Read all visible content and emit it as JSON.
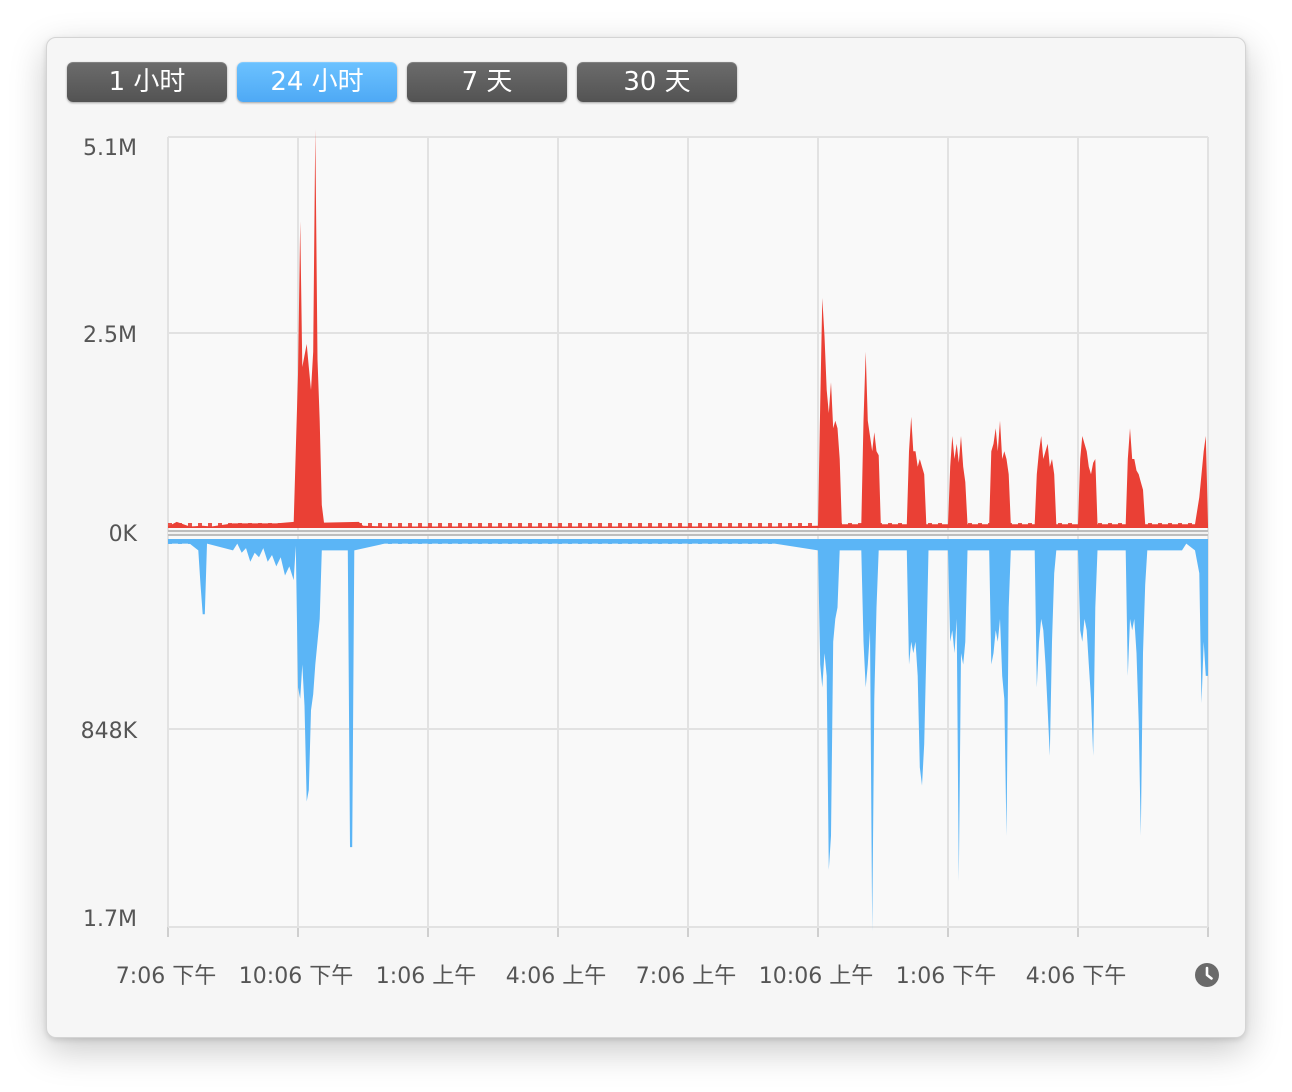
{
  "tabs": [
    {
      "label": "1 小时",
      "active": false
    },
    {
      "label": "24 小时",
      "active": true
    },
    {
      "label": "7 天",
      "active": false
    },
    {
      "label": "30 天",
      "active": false
    }
  ],
  "colors": {
    "sent": "#ea4035",
    "received": "#5bb5f6",
    "grid": "#e2e2e2",
    "baseline": "#bdbdbd",
    "text": "#555555"
  },
  "icons": {
    "time": "clock-icon"
  },
  "chart_data": {
    "type": "area",
    "title": "",
    "xlabel": "",
    "ylabel": "",
    "grid": true,
    "legend": "none",
    "x_ticks": [
      "7:06 下午",
      "10:06 下午",
      "1:06 上午",
      "4:06 上午",
      "7:06 上午",
      "10:06 上午",
      "1:06 下午",
      "4:06 下午"
    ],
    "y_upper_ticks": [
      "5.1M",
      "2.5M",
      "0K"
    ],
    "y_lower_ticks": [
      "848K",
      "1.7M"
    ],
    "upper_max_bytes": 5100000,
    "lower_max_bytes": 1700000,
    "x_range_hours": [
      0,
      24
    ],
    "series": [
      {
        "key": "sent",
        "direction": "up",
        "points": [
          [
            0,
            0.02
          ],
          [
            0.2,
            0.08
          ],
          [
            0.5,
            0.02
          ],
          [
            0.8,
            0.03
          ],
          [
            1.0,
            0.02
          ],
          [
            1.5,
            0.06
          ],
          [
            2.5,
            0.06
          ],
          [
            2.9,
            0.08
          ],
          [
            3.0,
            2.0
          ],
          [
            3.05,
            4.0
          ],
          [
            3.1,
            2.1
          ],
          [
            3.2,
            2.4
          ],
          [
            3.25,
            2.1
          ],
          [
            3.3,
            1.8
          ],
          [
            3.35,
            2.3
          ],
          [
            3.4,
            5.2
          ],
          [
            3.45,
            2.2
          ],
          [
            3.5,
            1.4
          ],
          [
            3.55,
            0.3
          ],
          [
            3.6,
            0.07
          ],
          [
            4.4,
            0.08
          ],
          [
            4.5,
            0.03
          ],
          [
            5.0,
            0.02
          ],
          [
            6.0,
            0.02
          ],
          [
            8.0,
            0.02
          ],
          [
            10.0,
            0.02
          ],
          [
            12.0,
            0.02
          ],
          [
            14.0,
            0.02
          ],
          [
            15.0,
            0.03
          ],
          [
            15.05,
            1.6
          ],
          [
            15.1,
            3.0
          ],
          [
            15.15,
            2.5
          ],
          [
            15.2,
            1.8
          ],
          [
            15.25,
            1.5
          ],
          [
            15.3,
            1.9
          ],
          [
            15.35,
            1.3
          ],
          [
            15.4,
            1.4
          ],
          [
            15.45,
            1.3
          ],
          [
            15.5,
            0.9
          ],
          [
            15.55,
            0.05
          ],
          [
            16.0,
            0.05
          ],
          [
            16.05,
            1.4
          ],
          [
            16.1,
            2.3
          ],
          [
            16.15,
            1.4
          ],
          [
            16.2,
            1.2
          ],
          [
            16.25,
            1.0
          ],
          [
            16.3,
            1.25
          ],
          [
            16.35,
            1.0
          ],
          [
            16.4,
            0.95
          ],
          [
            16.45,
            0.05
          ],
          [
            17.05,
            0.05
          ],
          [
            17.1,
            1.0
          ],
          [
            17.15,
            1.45
          ],
          [
            17.2,
            1.0
          ],
          [
            17.25,
            1.0
          ],
          [
            17.3,
            0.8
          ],
          [
            17.35,
            0.9
          ],
          [
            17.4,
            0.8
          ],
          [
            17.45,
            0.7
          ],
          [
            17.5,
            0.05
          ],
          [
            18.0,
            0.05
          ],
          [
            18.05,
            0.8
          ],
          [
            18.1,
            1.2
          ],
          [
            18.15,
            0.9
          ],
          [
            18.2,
            1.1
          ],
          [
            18.25,
            0.85
          ],
          [
            18.3,
            1.2
          ],
          [
            18.35,
            0.8
          ],
          [
            18.4,
            0.6
          ],
          [
            18.45,
            0.05
          ],
          [
            18.95,
            0.05
          ],
          [
            19.0,
            1.0
          ],
          [
            19.05,
            1.1
          ],
          [
            19.1,
            1.3
          ],
          [
            19.15,
            1.0
          ],
          [
            19.2,
            1.4
          ],
          [
            19.25,
            0.9
          ],
          [
            19.3,
            1.0
          ],
          [
            19.35,
            0.9
          ],
          [
            19.4,
            0.7
          ],
          [
            19.45,
            0.05
          ],
          [
            20.0,
            0.05
          ],
          [
            20.05,
            0.7
          ],
          [
            20.1,
            1.0
          ],
          [
            20.15,
            1.2
          ],
          [
            20.2,
            0.9
          ],
          [
            20.25,
            1.0
          ],
          [
            20.3,
            1.1
          ],
          [
            20.35,
            0.8
          ],
          [
            20.4,
            0.9
          ],
          [
            20.45,
            0.7
          ],
          [
            20.5,
            0.05
          ],
          [
            21.0,
            0.05
          ],
          [
            21.05,
            0.9
          ],
          [
            21.1,
            1.2
          ],
          [
            21.15,
            1.1
          ],
          [
            21.2,
            1.0
          ],
          [
            21.25,
            0.8
          ],
          [
            21.3,
            0.7
          ],
          [
            21.35,
            0.85
          ],
          [
            21.4,
            0.9
          ],
          [
            21.45,
            0.05
          ],
          [
            22.1,
            0.05
          ],
          [
            22.15,
            0.9
          ],
          [
            22.2,
            1.3
          ],
          [
            22.25,
            0.9
          ],
          [
            22.3,
            0.9
          ],
          [
            22.35,
            0.75
          ],
          [
            22.4,
            0.7
          ],
          [
            22.45,
            0.6
          ],
          [
            22.5,
            0.5
          ],
          [
            22.55,
            0.05
          ],
          [
            23.7,
            0.05
          ],
          [
            23.8,
            0.4
          ],
          [
            23.9,
            1.0
          ],
          [
            23.95,
            1.2
          ],
          [
            24.0,
            0.05
          ]
        ]
      },
      {
        "key": "received",
        "direction": "down",
        "points": [
          [
            0,
            0.02
          ],
          [
            0.5,
            0.02
          ],
          [
            0.7,
            0.05
          ],
          [
            0.75,
            0.2
          ],
          [
            0.8,
            0.33
          ],
          [
            0.85,
            0.33
          ],
          [
            0.9,
            0.02
          ],
          [
            1.5,
            0.05
          ],
          [
            1.6,
            0.02
          ],
          [
            1.7,
            0.06
          ],
          [
            1.8,
            0.04
          ],
          [
            1.9,
            0.1
          ],
          [
            2.0,
            0.06
          ],
          [
            2.1,
            0.08
          ],
          [
            2.2,
            0.04
          ],
          [
            2.3,
            0.1
          ],
          [
            2.4,
            0.07
          ],
          [
            2.5,
            0.12
          ],
          [
            2.6,
            0.08
          ],
          [
            2.7,
            0.16
          ],
          [
            2.8,
            0.12
          ],
          [
            2.9,
            0.18
          ],
          [
            2.95,
            0.03
          ],
          [
            3.0,
            0.65
          ],
          [
            3.05,
            0.7
          ],
          [
            3.1,
            0.55
          ],
          [
            3.15,
            0.73
          ],
          [
            3.2,
            1.15
          ],
          [
            3.25,
            1.1
          ],
          [
            3.3,
            0.75
          ],
          [
            3.35,
            0.68
          ],
          [
            3.4,
            0.55
          ],
          [
            3.45,
            0.45
          ],
          [
            3.5,
            0.35
          ],
          [
            3.55,
            0.05
          ],
          [
            4.15,
            0.05
          ],
          [
            4.2,
            1.35
          ],
          [
            4.25,
            1.35
          ],
          [
            4.3,
            0.05
          ],
          [
            5.0,
            0.02
          ],
          [
            8.0,
            0.02
          ],
          [
            10.0,
            0.02
          ],
          [
            12.0,
            0.02
          ],
          [
            14.0,
            0.02
          ],
          [
            15.0,
            0.05
          ],
          [
            15.05,
            0.55
          ],
          [
            15.1,
            0.65
          ],
          [
            15.15,
            0.5
          ],
          [
            15.2,
            0.6
          ],
          [
            15.25,
            1.45
          ],
          [
            15.3,
            1.3
          ],
          [
            15.35,
            0.45
          ],
          [
            15.4,
            0.35
          ],
          [
            15.45,
            0.3
          ],
          [
            15.5,
            0.05
          ],
          [
            16.0,
            0.05
          ],
          [
            16.05,
            0.45
          ],
          [
            16.1,
            0.65
          ],
          [
            16.15,
            0.55
          ],
          [
            16.2,
            0.4
          ],
          [
            16.25,
            1.72
          ],
          [
            16.3,
            0.7
          ],
          [
            16.35,
            0.3
          ],
          [
            16.4,
            0.05
          ],
          [
            17.05,
            0.05
          ],
          [
            17.1,
            0.55
          ],
          [
            17.15,
            0.45
          ],
          [
            17.2,
            0.5
          ],
          [
            17.25,
            0.45
          ],
          [
            17.3,
            0.6
          ],
          [
            17.35,
            1.0
          ],
          [
            17.4,
            1.08
          ],
          [
            17.45,
            0.9
          ],
          [
            17.5,
            0.5
          ],
          [
            17.55,
            0.05
          ],
          [
            18.0,
            0.05
          ],
          [
            18.05,
            0.45
          ],
          [
            18.1,
            0.4
          ],
          [
            18.15,
            0.5
          ],
          [
            18.2,
            0.35
          ],
          [
            18.25,
            1.5
          ],
          [
            18.3,
            0.5
          ],
          [
            18.35,
            0.55
          ],
          [
            18.4,
            0.45
          ],
          [
            18.45,
            0.05
          ],
          [
            18.95,
            0.05
          ],
          [
            19.0,
            0.55
          ],
          [
            19.05,
            0.5
          ],
          [
            19.1,
            0.4
          ],
          [
            19.15,
            0.45
          ],
          [
            19.2,
            0.35
          ],
          [
            19.25,
            0.6
          ],
          [
            19.3,
            0.7
          ],
          [
            19.35,
            1.3
          ],
          [
            19.4,
            0.3
          ],
          [
            19.45,
            0.05
          ],
          [
            20.0,
            0.05
          ],
          [
            20.05,
            0.65
          ],
          [
            20.1,
            0.45
          ],
          [
            20.15,
            0.35
          ],
          [
            20.2,
            0.4
          ],
          [
            20.25,
            0.55
          ],
          [
            20.3,
            0.75
          ],
          [
            20.35,
            0.95
          ],
          [
            20.4,
            0.45
          ],
          [
            20.45,
            0.15
          ],
          [
            20.5,
            0.05
          ],
          [
            21.0,
            0.05
          ],
          [
            21.05,
            0.4
          ],
          [
            21.1,
            0.45
          ],
          [
            21.15,
            0.35
          ],
          [
            21.2,
            0.4
          ],
          [
            21.25,
            0.55
          ],
          [
            21.3,
            0.7
          ],
          [
            21.35,
            0.95
          ],
          [
            21.4,
            0.3
          ],
          [
            21.45,
            0.05
          ],
          [
            22.1,
            0.05
          ],
          [
            22.15,
            0.6
          ],
          [
            22.2,
            0.35
          ],
          [
            22.25,
            0.4
          ],
          [
            22.3,
            0.35
          ],
          [
            22.35,
            0.5
          ],
          [
            22.4,
            0.8
          ],
          [
            22.45,
            1.3
          ],
          [
            22.5,
            0.5
          ],
          [
            22.55,
            0.2
          ],
          [
            22.6,
            0.05
          ],
          [
            23.4,
            0.05
          ],
          [
            23.5,
            0.02
          ],
          [
            23.7,
            0.05
          ],
          [
            23.8,
            0.15
          ],
          [
            23.85,
            0.72
          ],
          [
            23.9,
            0.45
          ],
          [
            23.95,
            0.6
          ],
          [
            24.0,
            0.6
          ]
        ]
      }
    ]
  }
}
